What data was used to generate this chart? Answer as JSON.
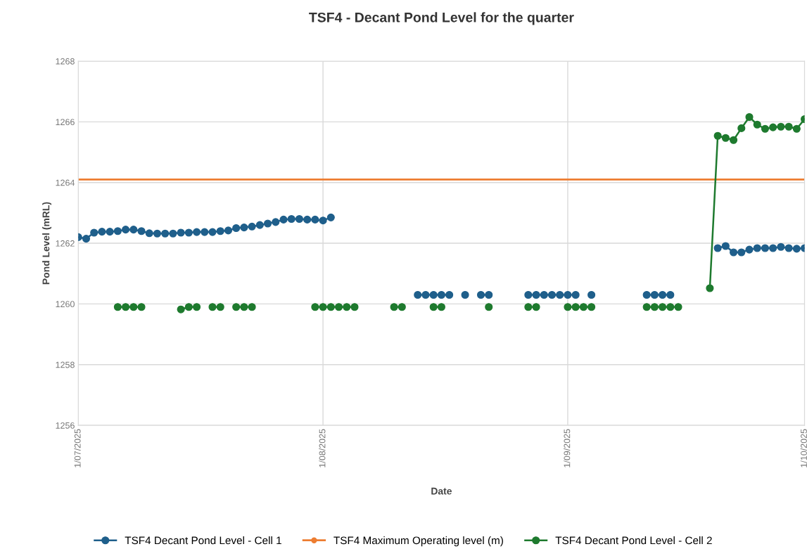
{
  "chart_data": {
    "type": "line",
    "title": "TSF4 - Decant Pond Level for the quarter",
    "xlabel": "Date",
    "ylabel": "Pond Level (mRL)",
    "x": [
      "2025-07-01",
      "2025-07-02",
      "2025-07-03",
      "2025-07-04",
      "2025-07-05",
      "2025-07-06",
      "2025-07-07",
      "2025-07-08",
      "2025-07-09",
      "2025-07-10",
      "2025-07-11",
      "2025-07-12",
      "2025-07-13",
      "2025-07-14",
      "2025-07-15",
      "2025-07-16",
      "2025-07-17",
      "2025-07-18",
      "2025-07-19",
      "2025-07-20",
      "2025-07-21",
      "2025-07-22",
      "2025-07-23",
      "2025-07-24",
      "2025-07-25",
      "2025-07-26",
      "2025-07-27",
      "2025-07-28",
      "2025-07-29",
      "2025-07-30",
      "2025-07-31",
      "2025-08-01",
      "2025-08-02",
      "2025-08-03",
      "2025-08-04",
      "2025-08-05",
      "2025-08-06",
      "2025-08-07",
      "2025-08-08",
      "2025-08-09",
      "2025-08-10",
      "2025-08-11",
      "2025-08-12",
      "2025-08-13",
      "2025-08-14",
      "2025-08-15",
      "2025-08-16",
      "2025-08-17",
      "2025-08-18",
      "2025-08-19",
      "2025-08-20",
      "2025-08-21",
      "2025-08-22",
      "2025-08-23",
      "2025-08-24",
      "2025-08-25",
      "2025-08-26",
      "2025-08-27",
      "2025-08-28",
      "2025-08-29",
      "2025-08-30",
      "2025-08-31",
      "2025-09-01",
      "2025-09-02",
      "2025-09-03",
      "2025-09-04",
      "2025-09-05",
      "2025-09-06",
      "2025-09-07",
      "2025-09-08",
      "2025-09-09",
      "2025-09-10",
      "2025-09-11",
      "2025-09-12",
      "2025-09-13",
      "2025-09-14",
      "2025-09-15",
      "2025-09-16",
      "2025-09-17",
      "2025-09-18",
      "2025-09-19",
      "2025-09-20",
      "2025-09-21",
      "2025-09-22",
      "2025-09-23",
      "2025-09-24",
      "2025-09-25",
      "2025-09-26",
      "2025-09-27",
      "2025-09-28",
      "2025-09-29",
      "2025-09-30",
      "2025-10-01"
    ],
    "series": [
      {
        "name": "TSF4 Decant Pond Level - Cell 1",
        "color": "#1f5f8b",
        "values": [
          1262.2,
          1262.15,
          1262.35,
          1262.38,
          1262.38,
          1262.4,
          1262.45,
          1262.45,
          1262.4,
          1262.33,
          1262.32,
          1262.32,
          1262.32,
          1262.35,
          1262.35,
          1262.37,
          1262.37,
          1262.37,
          1262.4,
          1262.42,
          1262.5,
          1262.52,
          1262.55,
          1262.6,
          1262.65,
          1262.7,
          1262.78,
          1262.8,
          1262.8,
          1262.78,
          1262.78,
          1262.75,
          1262.85,
          null,
          null,
          null,
          null,
          null,
          null,
          null,
          null,
          null,
          null,
          1260.3,
          1260.3,
          1260.3,
          1260.3,
          1260.3,
          null,
          1260.3,
          null,
          1260.3,
          1260.3,
          null,
          null,
          null,
          null,
          1260.3,
          1260.3,
          1260.3,
          1260.3,
          1260.3,
          1260.3,
          1260.3,
          null,
          1260.3,
          null,
          null,
          null,
          null,
          null,
          null,
          1260.3,
          1260.3,
          1260.3,
          1260.3,
          null,
          null,
          null,
          null,
          null,
          1261.84,
          1261.91,
          1261.7,
          1261.7,
          1261.79,
          1261.84,
          1261.84,
          1261.84,
          1261.88,
          1261.84,
          1261.82,
          1261.84
        ]
      },
      {
        "name": "TSF4 Decant Pond Level - Cell 2",
        "color": "#1e7a2e",
        "values": [
          null,
          null,
          null,
          null,
          null,
          1259.9,
          1259.9,
          1259.9,
          1259.9,
          null,
          null,
          null,
          null,
          1259.82,
          1259.9,
          1259.9,
          null,
          1259.9,
          1259.9,
          null,
          1259.9,
          1259.9,
          1259.9,
          null,
          null,
          null,
          null,
          null,
          null,
          null,
          1259.9,
          1259.9,
          1259.9,
          1259.9,
          1259.9,
          1259.9,
          null,
          null,
          null,
          null,
          1259.9,
          1259.9,
          null,
          null,
          null,
          1259.9,
          1259.9,
          null,
          null,
          null,
          null,
          null,
          1259.9,
          null,
          null,
          null,
          null,
          1259.9,
          1259.9,
          null,
          null,
          null,
          1259.9,
          1259.9,
          1259.9,
          1259.9,
          null,
          null,
          null,
          null,
          null,
          null,
          1259.9,
          1259.9,
          1259.9,
          1259.9,
          1259.9,
          null,
          null,
          null,
          1260.52,
          1265.54,
          1265.47,
          1265.4,
          1265.79,
          1266.16,
          1265.91,
          1265.77,
          1265.82,
          1265.84,
          1265.84,
          1265.77,
          1266.09
        ]
      }
    ],
    "ref_lines": [
      {
        "axis": "y",
        "value": 1264.1,
        "label": "TSF4 Maximum Operating level (m)",
        "color": "#ed7d31"
      }
    ],
    "xlim": [
      "2025-07-01",
      "2025-10-01"
    ],
    "xticks": [
      {
        "value": "2025-07-01",
        "label": "1/07/2025"
      },
      {
        "value": "2025-08-01",
        "label": "1/08/2025"
      },
      {
        "value": "2025-09-01",
        "label": "1/09/2025"
      },
      {
        "value": "2025-10-01",
        "label": "1/10/2025"
      }
    ],
    "ylim": [
      1256,
      1268
    ],
    "yticks": [
      1256,
      1258,
      1260,
      1262,
      1264,
      1266,
      1268
    ],
    "grid": true,
    "legend": "bottom",
    "marker": "circle",
    "line_style": "solid"
  }
}
